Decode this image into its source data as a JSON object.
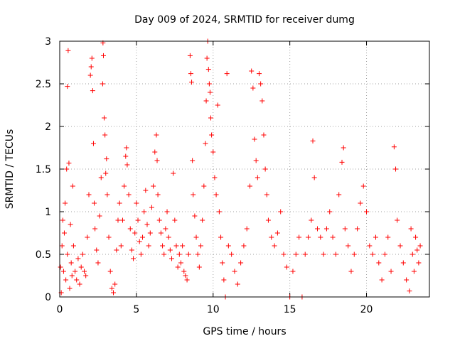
{
  "chart_data": {
    "type": "scatter",
    "title": "Day 009 of 2024, SRMTID for receiver dumg",
    "xlabel": "GPS time / hours",
    "ylabel": "SRMTID / TECUs",
    "xlim": [
      0,
      24.1
    ],
    "ylim": [
      0,
      3
    ],
    "xticks": [
      0,
      5,
      10,
      15,
      20
    ],
    "yticks": [
      0,
      0.5,
      1,
      1.5,
      2,
      2.5,
      3
    ],
    "xtick_labels": [
      "0",
      "5",
      "10",
      "15",
      "20"
    ],
    "ytick_labels": [
      "0",
      "0.5",
      "1",
      "1.5",
      "2",
      "2.5",
      "3"
    ],
    "grid": true,
    "marker": "plus",
    "color": "#ff0000",
    "series": [
      {
        "name": "SRMTID",
        "points": [
          [
            0.05,
            0.35
          ],
          [
            0.1,
            0.05
          ],
          [
            0.15,
            0.6
          ],
          [
            0.2,
            0.9
          ],
          [
            0.25,
            0.3
          ],
          [
            0.3,
            0.75
          ],
          [
            0.35,
            1.1
          ],
          [
            0.4,
            0.2
          ],
          [
            0.45,
            1.5
          ],
          [
            0.5,
            0.5
          ],
          [
            0.5,
            2.47
          ],
          [
            0.55,
            2.89
          ],
          [
            0.6,
            1.57
          ],
          [
            0.65,
            0.1
          ],
          [
            0.7,
            0.85
          ],
          [
            0.75,
            0.4
          ],
          [
            0.8,
            0.25
          ],
          [
            0.85,
            1.3
          ],
          [
            0.9,
            0.6
          ],
          [
            1.0,
            0.3
          ],
          [
            1.1,
            0.2
          ],
          [
            1.2,
            0.45
          ],
          [
            1.3,
            0.15
          ],
          [
            1.4,
            0.35
          ],
          [
            1.5,
            0.5
          ],
          [
            1.6,
            0.3
          ],
          [
            1.7,
            0.25
          ],
          [
            1.8,
            0.7
          ],
          [
            1.9,
            1.2
          ],
          [
            2.0,
            2.6
          ],
          [
            2.05,
            2.7
          ],
          [
            2.1,
            2.8
          ],
          [
            2.15,
            2.42
          ],
          [
            2.2,
            1.8
          ],
          [
            2.25,
            1.1
          ],
          [
            2.3,
            0.8
          ],
          [
            2.4,
            0.55
          ],
          [
            2.5,
            0.4
          ],
          [
            2.6,
            0.95
          ],
          [
            2.7,
            1.4
          ],
          [
            2.8,
            2.5
          ],
          [
            2.82,
            2.98
          ],
          [
            2.85,
            2.83
          ],
          [
            2.9,
            2.1
          ],
          [
            2.95,
            1.9
          ],
          [
            3.0,
            1.45
          ],
          [
            3.05,
            1.62
          ],
          [
            3.1,
            1.2
          ],
          [
            3.2,
            0.7
          ],
          [
            3.3,
            0.3
          ],
          [
            3.4,
            0.1
          ],
          [
            3.5,
            0.05
          ],
          [
            3.6,
            0.15
          ],
          [
            3.7,
            0.55
          ],
          [
            3.8,
            0.9
          ],
          [
            3.9,
            1.1
          ],
          [
            4.0,
            0.6
          ],
          [
            4.1,
            0.9
          ],
          [
            4.2,
            1.3
          ],
          [
            4.3,
            1.65
          ],
          [
            4.35,
            1.75
          ],
          [
            4.4,
            1.55
          ],
          [
            4.5,
            1.2
          ],
          [
            4.6,
            0.8
          ],
          [
            4.7,
            0.55
          ],
          [
            4.8,
            0.45
          ],
          [
            4.9,
            0.75
          ],
          [
            5.0,
            1.1
          ],
          [
            5.1,
            0.9
          ],
          [
            5.2,
            0.65
          ],
          [
            5.3,
            0.5
          ],
          [
            5.4,
            0.7
          ],
          [
            5.5,
            1.0
          ],
          [
            5.6,
            1.25
          ],
          [
            5.7,
            0.85
          ],
          [
            5.8,
            0.6
          ],
          [
            5.9,
            0.75
          ],
          [
            6.0,
            1.05
          ],
          [
            6.1,
            1.3
          ],
          [
            6.2,
            1.7
          ],
          [
            6.3,
            1.9
          ],
          [
            6.35,
            1.6
          ],
          [
            6.4,
            1.2
          ],
          [
            6.5,
            0.9
          ],
          [
            6.6,
            0.75
          ],
          [
            6.7,
            0.6
          ],
          [
            6.8,
            0.5
          ],
          [
            6.9,
            0.8
          ],
          [
            7.0,
            1.0
          ],
          [
            7.1,
            0.7
          ],
          [
            7.2,
            0.55
          ],
          [
            7.3,
            0.45
          ],
          [
            7.4,
            1.45
          ],
          [
            7.5,
            0.9
          ],
          [
            7.6,
            0.6
          ],
          [
            7.7,
            0.35
          ],
          [
            7.8,
            0.5
          ],
          [
            7.9,
            0.4
          ],
          [
            8.0,
            0.6
          ],
          [
            8.1,
            0.3
          ],
          [
            8.2,
            0.25
          ],
          [
            8.3,
            0.2
          ],
          [
            8.4,
            0.5
          ],
          [
            8.5,
            2.83
          ],
          [
            8.55,
            2.62
          ],
          [
            8.6,
            2.52
          ],
          [
            8.65,
            1.6
          ],
          [
            8.7,
            1.2
          ],
          [
            8.8,
            0.95
          ],
          [
            8.9,
            0.7
          ],
          [
            9.0,
            0.5
          ],
          [
            9.1,
            0.35
          ],
          [
            9.2,
            0.6
          ],
          [
            9.3,
            0.9
          ],
          [
            9.4,
            1.3
          ],
          [
            9.5,
            1.8
          ],
          [
            9.55,
            2.3
          ],
          [
            9.6,
            2.8
          ],
          [
            9.65,
            3.0
          ],
          [
            9.7,
            2.67
          ],
          [
            9.75,
            2.5
          ],
          [
            9.8,
            2.4
          ],
          [
            9.85,
            2.1
          ],
          [
            9.9,
            1.9
          ],
          [
            10.0,
            1.7
          ],
          [
            10.1,
            1.4
          ],
          [
            10.2,
            1.2
          ],
          [
            10.3,
            2.25
          ],
          [
            10.4,
            1.0
          ],
          [
            10.5,
            0.7
          ],
          [
            10.6,
            0.4
          ],
          [
            10.7,
            0.2
          ],
          [
            10.8,
            0.0
          ],
          [
            10.9,
            2.62
          ],
          [
            11.0,
            0.6
          ],
          [
            11.2,
            0.5
          ],
          [
            11.4,
            0.3
          ],
          [
            11.6,
            0.15
          ],
          [
            11.8,
            0.4
          ],
          [
            12.0,
            0.6
          ],
          [
            12.2,
            0.8
          ],
          [
            12.4,
            1.3
          ],
          [
            12.5,
            2.65
          ],
          [
            12.6,
            2.45
          ],
          [
            12.7,
            1.85
          ],
          [
            12.8,
            1.6
          ],
          [
            12.9,
            1.4
          ],
          [
            13.0,
            2.62
          ],
          [
            13.1,
            2.5
          ],
          [
            13.2,
            2.3
          ],
          [
            13.3,
            1.9
          ],
          [
            13.4,
            1.5
          ],
          [
            13.5,
            1.2
          ],
          [
            13.6,
            0.9
          ],
          [
            13.8,
            0.7
          ],
          [
            14.0,
            0.6
          ],
          [
            14.2,
            0.75
          ],
          [
            14.4,
            1.0
          ],
          [
            14.6,
            0.5
          ],
          [
            14.8,
            0.35
          ],
          [
            15.0,
            0.0
          ],
          [
            15.2,
            0.3
          ],
          [
            15.4,
            0.5
          ],
          [
            15.6,
            0.7
          ],
          [
            15.8,
            0.0
          ],
          [
            16.0,
            0.5
          ],
          [
            16.2,
            0.7
          ],
          [
            16.4,
            0.9
          ],
          [
            16.5,
            1.83
          ],
          [
            16.6,
            1.4
          ],
          [
            16.8,
            0.8
          ],
          [
            17.0,
            0.7
          ],
          [
            17.2,
            0.5
          ],
          [
            17.4,
            0.8
          ],
          [
            17.6,
            1.0
          ],
          [
            17.8,
            0.7
          ],
          [
            18.0,
            0.5
          ],
          [
            18.2,
            1.2
          ],
          [
            18.4,
            1.58
          ],
          [
            18.5,
            1.75
          ],
          [
            18.6,
            0.8
          ],
          [
            18.8,
            0.6
          ],
          [
            19.0,
            0.3
          ],
          [
            19.2,
            0.5
          ],
          [
            19.4,
            0.8
          ],
          [
            19.6,
            1.1
          ],
          [
            19.8,
            1.3
          ],
          [
            20.0,
            1.0
          ],
          [
            20.2,
            0.6
          ],
          [
            20.4,
            0.5
          ],
          [
            20.6,
            0.7
          ],
          [
            20.8,
            0.4
          ],
          [
            21.0,
            0.2
          ],
          [
            21.2,
            0.5
          ],
          [
            21.4,
            0.7
          ],
          [
            21.6,
            0.3
          ],
          [
            21.8,
            1.76
          ],
          [
            21.9,
            1.5
          ],
          [
            22.0,
            0.9
          ],
          [
            22.2,
            0.6
          ],
          [
            22.4,
            0.4
          ],
          [
            22.6,
            0.2
          ],
          [
            22.8,
            0.07
          ],
          [
            22.9,
            0.8
          ],
          [
            23.0,
            0.5
          ],
          [
            23.1,
            0.3
          ],
          [
            23.2,
            0.7
          ],
          [
            23.3,
            0.55
          ],
          [
            23.4,
            0.4
          ],
          [
            23.5,
            0.6
          ]
        ]
      }
    ]
  }
}
